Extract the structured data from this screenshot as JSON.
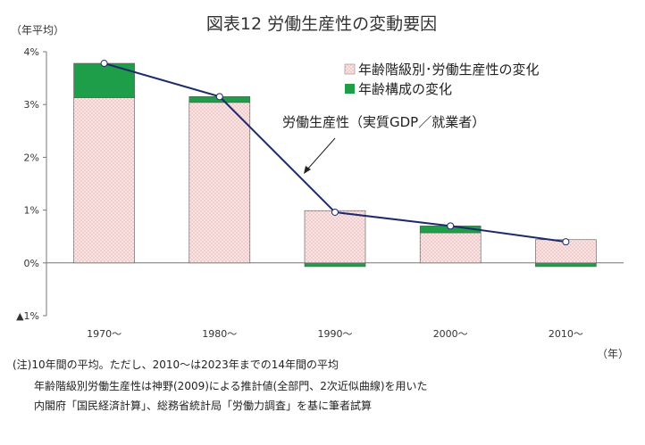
{
  "chart_data": {
    "type": "bar",
    "stacked": true,
    "title": "図表12 労働生産性の変動要因",
    "ylabel": "（年平均）",
    "xlabel": "（年）",
    "categories": [
      "1970〜",
      "1980〜",
      "1990〜",
      "2000〜",
      "2010〜"
    ],
    "y_ticks": [
      {
        "value": 4,
        "label": "4%"
      },
      {
        "value": 3,
        "label": "3%"
      },
      {
        "value": 2,
        "label": "2%"
      },
      {
        "value": 1,
        "label": "1%"
      },
      {
        "value": 0,
        "label": "0%"
      },
      {
        "value": -1,
        "label": "▲1%"
      }
    ],
    "ylim": [
      -1,
      4
    ],
    "grid": false,
    "legend_position": "top-right",
    "series": [
      {
        "name": "年齢階級別･労働生産性の変化",
        "kind": "bar",
        "color": "#f4d4d4",
        "values": [
          3.13,
          3.04,
          0.99,
          0.57,
          0.44
        ]
      },
      {
        "name": "年齢構成の変化",
        "kind": "bar",
        "color": "#1e9e48",
        "values": [
          0.65,
          0.11,
          -0.07,
          0.13,
          -0.07
        ]
      },
      {
        "name": "労働生産性（実質GDP／就業者）",
        "kind": "line",
        "color": "#1f2a6b",
        "values": [
          3.78,
          3.15,
          0.96,
          0.7,
          0.4
        ]
      }
    ],
    "annotations": [
      {
        "text": "労働生産性（実質GDP／就業者）"
      }
    ]
  },
  "notes": {
    "line1": "(注)10年間の平均。ただし、2010〜は2023年までの14年間の平均",
    "line2": "年齢階級別労働生産性は神野(2009)による推計値(全部門、2次近似曲線)を用いた",
    "line3": "内閣府「国民経済計算」、総務省統計局「労働力調査」を基に筆者試算"
  }
}
